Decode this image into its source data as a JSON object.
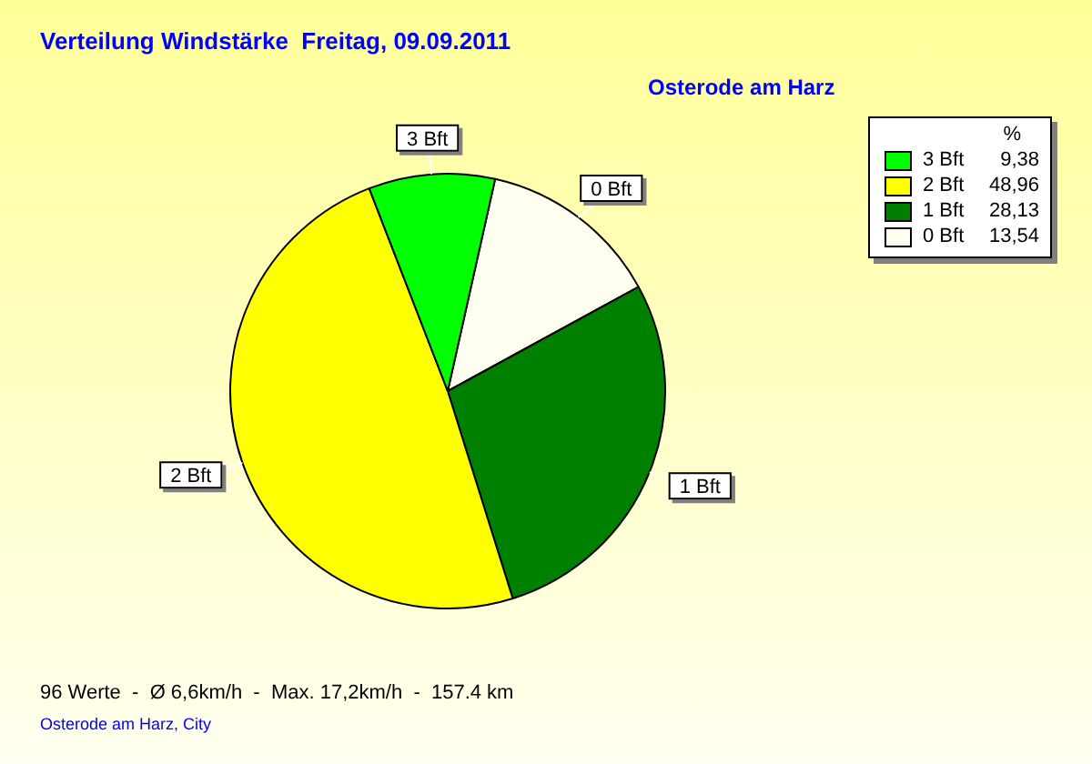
{
  "chart_data": {
    "type": "pie",
    "title": "Verteilung Windstärke  Freitag, 09.09.2011",
    "subtitle": "Osterode am Harz",
    "legend_title": "%",
    "categories": [
      "0 Bft",
      "1 Bft",
      "2 Bft",
      "3 Bft"
    ],
    "values": [
      13.54,
      28.13,
      48.96,
      9.38
    ],
    "value_labels": [
      "13,54",
      "28,13",
      "48,96",
      "9,38"
    ],
    "colors": [
      "#fffff0",
      "#008000",
      "#ffff00",
      "#00ff00"
    ],
    "legend": "top right",
    "annotations": [
      "96 Werte  -  Ø 6,6km/h  -  Max. 17,2km/h  -  157.4 km",
      "Osterode am Harz, City"
    ]
  }
}
